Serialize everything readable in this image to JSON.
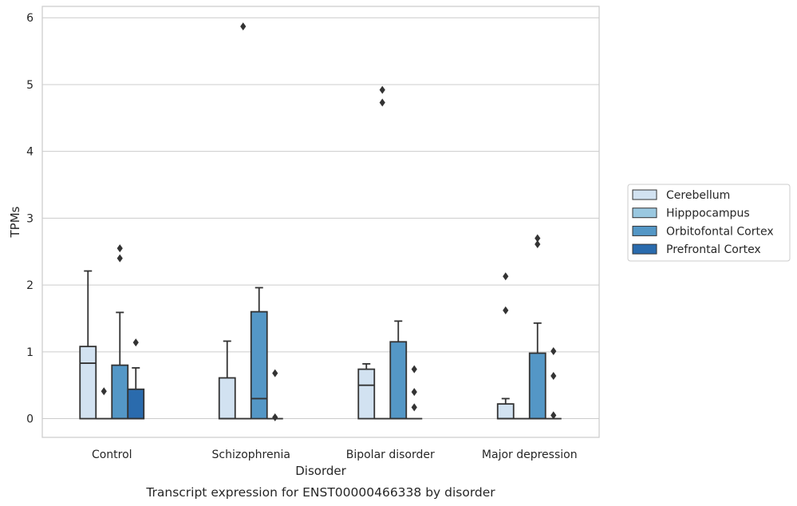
{
  "chart_data": {
    "type": "box",
    "caption": "Transcript expression for ENST00000466338 by disorder",
    "xlabel": "Disorder",
    "ylabel": "TPMs",
    "ylim": [
      -0.28,
      6.17
    ],
    "yticks": [
      0,
      1,
      2,
      3,
      4,
      5,
      6
    ],
    "grid": true,
    "legend_position": "right",
    "categories": [
      "Control",
      "Schizophrenia",
      "Bipolar disorder",
      "Major depression"
    ],
    "series": [
      {
        "name": "Cerebellum",
        "color": "#d2e2f1",
        "boxes": [
          {
            "q1": 0,
            "median": 0.83,
            "q3": 1.08,
            "whisker_low": 0,
            "whisker_high": 2.21,
            "outliers": []
          },
          {
            "q1": 0,
            "median": 0,
            "q3": 0.61,
            "whisker_low": 0,
            "whisker_high": 1.16,
            "outliers": []
          },
          {
            "q1": 0,
            "median": 0.5,
            "q3": 0.74,
            "whisker_low": 0,
            "whisker_high": 0.82,
            "outliers": []
          },
          {
            "q1": 0,
            "median": 0,
            "q3": 0.22,
            "whisker_low": 0,
            "whisker_high": 0.3,
            "outliers": [
              1.62,
              2.13
            ]
          }
        ]
      },
      {
        "name": "Hipppocampus",
        "color": "#9ac8e0",
        "boxes": [
          {
            "q1": 0,
            "median": 0,
            "q3": 0,
            "whisker_low": 0,
            "whisker_high": 0,
            "outliers": [
              0.41
            ]
          },
          {
            "q1": 0,
            "median": 0,
            "q3": 0,
            "whisker_low": 0,
            "whisker_high": 0,
            "outliers": [
              5.87
            ]
          },
          {
            "q1": 0,
            "median": 0,
            "q3": 0,
            "whisker_low": 0,
            "whisker_high": 0,
            "outliers": [
              4.73,
              4.92
            ]
          },
          {
            "q1": 0,
            "median": 0,
            "q3": 0,
            "whisker_low": 0,
            "whisker_high": 0,
            "outliers": []
          }
        ]
      },
      {
        "name": "Orbitofontal Cortex",
        "color": "#5497c6",
        "boxes": [
          {
            "q1": 0,
            "median": 0,
            "q3": 0.8,
            "whisker_low": 0,
            "whisker_high": 1.59,
            "outliers": [
              2.4,
              2.55
            ]
          },
          {
            "q1": 0,
            "median": 0.3,
            "q3": 1.6,
            "whisker_low": 0,
            "whisker_high": 1.96,
            "outliers": []
          },
          {
            "q1": 0,
            "median": 0,
            "q3": 1.15,
            "whisker_low": 0,
            "whisker_high": 1.46,
            "outliers": []
          },
          {
            "q1": 0,
            "median": 0,
            "q3": 0.98,
            "whisker_low": 0,
            "whisker_high": 1.43,
            "outliers": [
              2.61,
              2.7
            ]
          }
        ]
      },
      {
        "name": "Prefrontal Cortex",
        "color": "#2a6bad",
        "boxes": [
          {
            "q1": 0,
            "median": 0,
            "q3": 0.44,
            "whisker_low": 0,
            "whisker_high": 0.76,
            "outliers": [
              1.14
            ]
          },
          {
            "q1": 0,
            "median": 0,
            "q3": 0,
            "whisker_low": 0,
            "whisker_high": 0,
            "outliers": [
              0.02,
              0.68
            ]
          },
          {
            "q1": 0,
            "median": 0,
            "q3": 0,
            "whisker_low": 0,
            "whisker_high": 0,
            "outliers": [
              0.17,
              0.4,
              0.74
            ]
          },
          {
            "q1": 0,
            "median": 0,
            "q3": 0,
            "whisker_low": 0,
            "whisker_high": 0,
            "outliers": [
              0.05,
              0.64,
              1.01
            ]
          }
        ]
      }
    ]
  }
}
